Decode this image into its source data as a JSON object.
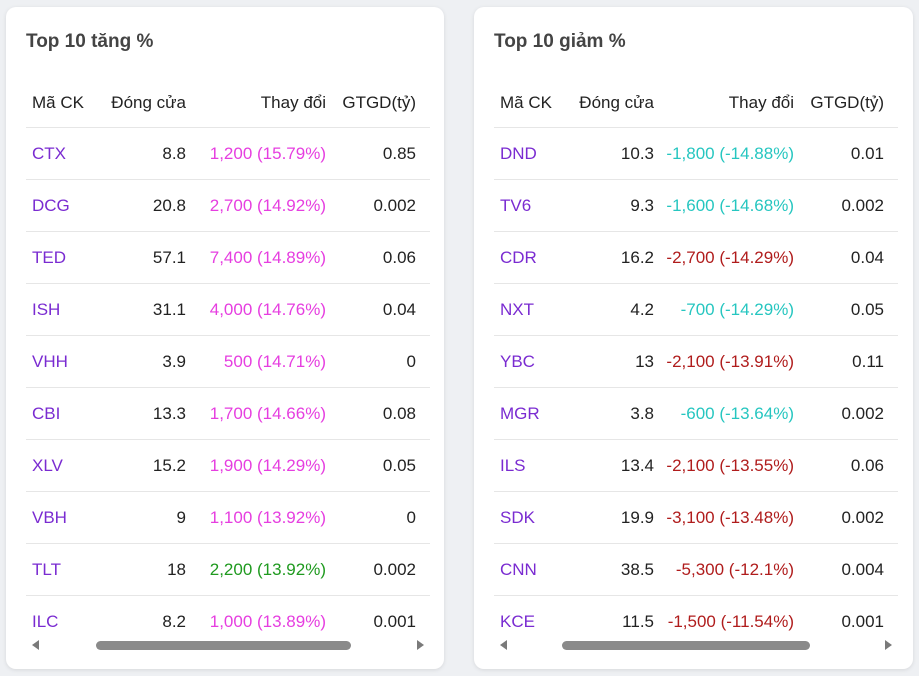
{
  "gainers": {
    "title": "Top 10 tăng %",
    "headers": [
      "Mã CK",
      "Đóng cửa",
      "Thay đổi",
      "GTGD(tỷ)"
    ],
    "rows": [
      {
        "code": "CTX",
        "close": "8.8",
        "change": "1,200 (15.79%)",
        "value": "0.85",
        "color": "#e63ee0"
      },
      {
        "code": "DCG",
        "close": "20.8",
        "change": "2,700 (14.92%)",
        "value": "0.002",
        "color": "#e63ee0"
      },
      {
        "code": "TED",
        "close": "57.1",
        "change": "7,400 (14.89%)",
        "value": "0.06",
        "color": "#e63ee0"
      },
      {
        "code": "ISH",
        "close": "31.1",
        "change": "4,000 (14.76%)",
        "value": "0.04",
        "color": "#e63ee0"
      },
      {
        "code": "VHH",
        "close": "3.9",
        "change": "500 (14.71%)",
        "value": "0",
        "color": "#e63ee0"
      },
      {
        "code": "CBI",
        "close": "13.3",
        "change": "1,700 (14.66%)",
        "value": "0.08",
        "color": "#e63ee0"
      },
      {
        "code": "XLV",
        "close": "15.2",
        "change": "1,900 (14.29%)",
        "value": "0.05",
        "color": "#e63ee0"
      },
      {
        "code": "VBH",
        "close": "9",
        "change": "1,100 (13.92%)",
        "value": "0",
        "color": "#e63ee0"
      },
      {
        "code": "TLT",
        "close": "18",
        "change": "2,200 (13.92%)",
        "value": "0.002",
        "color": "#1f9a1f"
      },
      {
        "code": "ILC",
        "close": "8.2",
        "change": "1,000 (13.89%)",
        "value": "0.001",
        "color": "#e63ee0"
      }
    ]
  },
  "losers": {
    "title": "Top 10 giảm %",
    "headers": [
      "Mã CK",
      "Đóng cửa",
      "Thay đổi",
      "GTGD(tỷ)"
    ],
    "rows": [
      {
        "code": "DND",
        "close": "10.3",
        "change": "-1,800 (-14.88%)",
        "value": "0.01",
        "color": "#26c6c0"
      },
      {
        "code": "TV6",
        "close": "9.3",
        "change": "-1,600 (-14.68%)",
        "value": "0.002",
        "color": "#26c6c0"
      },
      {
        "code": "CDR",
        "close": "16.2",
        "change": "-2,700 (-14.29%)",
        "value": "0.04",
        "color": "#b01c1c"
      },
      {
        "code": "NXT",
        "close": "4.2",
        "change": "-700 (-14.29%)",
        "value": "0.05",
        "color": "#26c6c0"
      },
      {
        "code": "YBC",
        "close": "13",
        "change": "-2,100 (-13.91%)",
        "value": "0.11",
        "color": "#b01c1c"
      },
      {
        "code": "MGR",
        "close": "3.8",
        "change": "-600 (-13.64%)",
        "value": "0.002",
        "color": "#26c6c0"
      },
      {
        "code": "ILS",
        "close": "13.4",
        "change": "-2,100 (-13.55%)",
        "value": "0.06",
        "color": "#b01c1c"
      },
      {
        "code": "SDK",
        "close": "19.9",
        "change": "-3,100 (-13.48%)",
        "value": "0.002",
        "color": "#b01c1c"
      },
      {
        "code": "CNN",
        "close": "38.5",
        "change": "-5,300 (-12.1%)",
        "value": "0.004",
        "color": "#b01c1c"
      },
      {
        "code": "KCE",
        "close": "11.5",
        "change": "-1,500 (-11.54%)",
        "value": "0.001",
        "color": "#b01c1c"
      }
    ]
  },
  "icons": {
    "scroll_left": "chevron-left-icon",
    "scroll_right": "chevron-right-icon"
  }
}
